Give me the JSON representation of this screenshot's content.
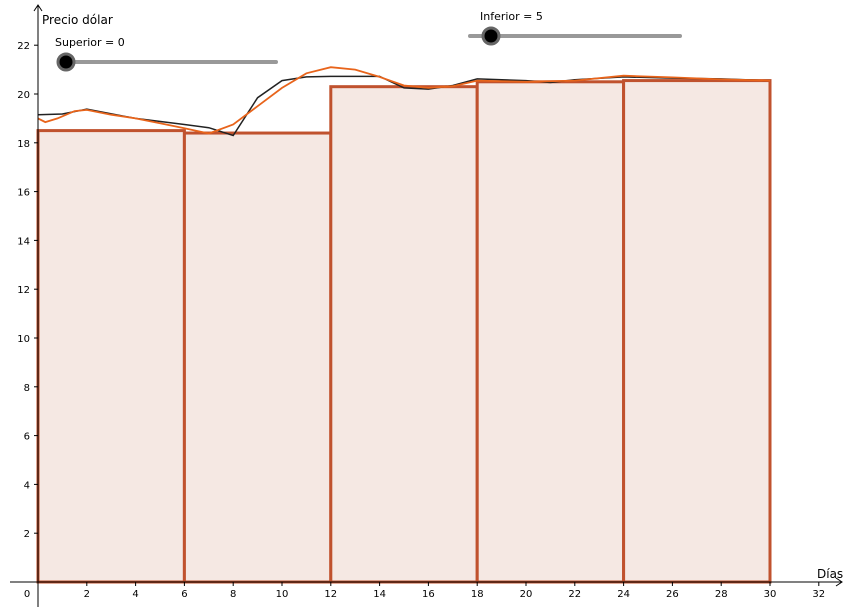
{
  "chart_data": {
    "type": "bar",
    "xlabel": "Días",
    "ylabel": "Precio dólar",
    "xlim": [
      0,
      32.5
    ],
    "ylim": [
      0,
      23
    ],
    "x_ticks": [
      0,
      2,
      4,
      6,
      8,
      10,
      12,
      14,
      16,
      18,
      20,
      22,
      24,
      26,
      28,
      30,
      32
    ],
    "y_ticks": [
      2,
      4,
      6,
      8,
      10,
      12,
      14,
      16,
      18,
      20,
      22
    ],
    "bars": [
      {
        "x0": 0,
        "x1": 6,
        "value": 18.5
      },
      {
        "x0": 6,
        "x1": 12,
        "value": 18.4
      },
      {
        "x0": 12,
        "x1": 18,
        "value": 20.3
      },
      {
        "x0": 18,
        "x1": 24,
        "value": 20.5
      },
      {
        "x0": 24,
        "x1": 30,
        "value": 20.55
      }
    ],
    "series": [
      {
        "color": "#222222",
        "points": [
          [
            0,
            19.15
          ],
          [
            1,
            19.18
          ],
          [
            2,
            19.38
          ],
          [
            4,
            19.0
          ],
          [
            6,
            18.75
          ],
          [
            7,
            18.62
          ],
          [
            8,
            18.3
          ],
          [
            9,
            19.85
          ],
          [
            10,
            20.55
          ],
          [
            11,
            20.7
          ],
          [
            12,
            20.72
          ],
          [
            14,
            20.72
          ],
          [
            15,
            20.25
          ],
          [
            16,
            20.2
          ],
          [
            17,
            20.35
          ],
          [
            18,
            20.62
          ],
          [
            20,
            20.55
          ],
          [
            21,
            20.47
          ],
          [
            22,
            20.58
          ],
          [
            24,
            20.7
          ],
          [
            26,
            20.65
          ],
          [
            28,
            20.62
          ],
          [
            30,
            20.55
          ]
        ]
      },
      {
        "color": "#e8641b",
        "points": [
          [
            0,
            19.0
          ],
          [
            0.3,
            18.85
          ],
          [
            0.8,
            19.0
          ],
          [
            1.5,
            19.3
          ],
          [
            2,
            19.35
          ],
          [
            3,
            19.15
          ],
          [
            4,
            19.0
          ],
          [
            5,
            18.8
          ],
          [
            6,
            18.6
          ],
          [
            7,
            18.38
          ],
          [
            8,
            18.75
          ],
          [
            9,
            19.5
          ],
          [
            10,
            20.25
          ],
          [
            11,
            20.85
          ],
          [
            12,
            21.1
          ],
          [
            13,
            21.0
          ],
          [
            14,
            20.7
          ],
          [
            15,
            20.35
          ],
          [
            16,
            20.25
          ],
          [
            17,
            20.32
          ],
          [
            18,
            20.55
          ],
          [
            20,
            20.5
          ],
          [
            22,
            20.55
          ],
          [
            24,
            20.75
          ],
          [
            26,
            20.68
          ],
          [
            28,
            20.6
          ],
          [
            30,
            20.55
          ]
        ]
      }
    ],
    "bar_fill": "#f5e8e3",
    "bar_stroke": "#c0522e",
    "grid": false
  },
  "sliders": {
    "superior": {
      "label": "Superior = 0",
      "value": 0
    },
    "inferior": {
      "label": "Inferior = 5",
      "value": 0.1
    }
  }
}
